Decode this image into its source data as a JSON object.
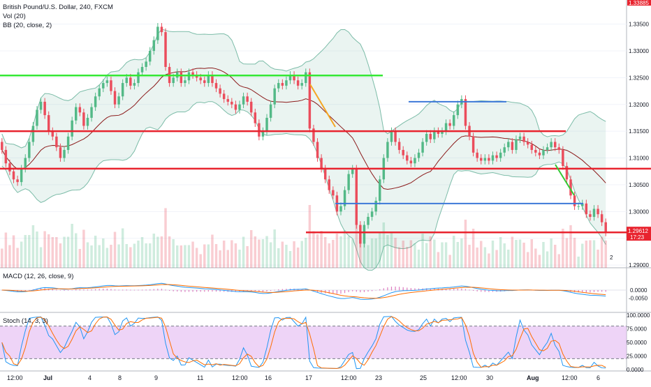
{
  "header": {
    "title": "British Pound/U.S. Dollar, 240, FXCM",
    "vol_label": "Vol (20)",
    "bb_label": "BB (20, close, 2)"
  },
  "macd_panel": {
    "label": "MACD (12, 26, close, 9)"
  },
  "stoch_panel": {
    "label": "Stoch (14, 3, 3)"
  },
  "price_axis": {
    "ticks": [
      "1.33500",
      "1.33000",
      "1.32500",
      "1.32000",
      "1.31500",
      "1.31000",
      "1.30500",
      "1.30000",
      "1.29500",
      "1.29000"
    ],
    "top_badge": "1.33885",
    "last_price": "1.29612",
    "countdown": "17:23"
  },
  "macd_axis": {
    "ticks": [
      "0.0000",
      "-0.0050"
    ]
  },
  "stoch_axis": {
    "ticks": [
      "100.0000",
      "75.0000",
      "50.0000",
      "25.0000",
      "0.0000"
    ]
  },
  "time_axis": {
    "labels": [
      "12:00",
      "Jul",
      "4",
      "8",
      "9",
      "11",
      "12:00",
      "16",
      "17",
      "12:00",
      "23",
      "25",
      "12:00",
      "30",
      "Aug",
      "12:00",
      "6"
    ]
  },
  "badges": {
    "alert_count": "2"
  },
  "colors": {
    "up": "#53b987",
    "down": "#eb4d5c",
    "green_line": "#34e834",
    "red_line": "#e8232e",
    "blue_line": "#3c78d8",
    "orange_arrow": "#f5a623",
    "bb_band": "#7cbca8",
    "bb_basis": "#8b1a1a",
    "stoch_bg": "#e0b0f0",
    "macd_line": "#2196f3",
    "signal_line": "#ff6d00",
    "badge_bg": "#e8232e"
  },
  "chart_data": {
    "type": "candlestick",
    "symbol": "British Pound/U.S. Dollar",
    "interval": "240",
    "source": "FXCM",
    "ylim": [
      1.2895,
      1.3395
    ],
    "closes": [
      1.3115,
      1.309,
      1.3075,
      1.306,
      1.3055,
      1.308,
      1.31,
      1.313,
      1.316,
      1.319,
      1.3205,
      1.318,
      1.315,
      1.314,
      1.312,
      1.31,
      1.3115,
      1.314,
      1.317,
      1.3195,
      1.3185,
      1.316,
      1.3175,
      1.3195,
      1.3215,
      1.323,
      1.324,
      1.3245,
      1.3225,
      1.32,
      1.3215,
      1.324,
      1.325,
      1.3235,
      1.324,
      1.326,
      1.327,
      1.328,
      1.33,
      1.332,
      1.3345,
      1.3335,
      1.327,
      1.324,
      1.325,
      1.326,
      1.324,
      1.3245,
      1.326,
      1.3255,
      1.325,
      1.3245,
      1.324,
      1.3255,
      1.324,
      1.323,
      1.322,
      1.321,
      1.3205,
      1.32,
      1.319,
      1.32,
      1.3215,
      1.3205,
      1.3185,
      1.3165,
      1.314,
      1.315,
      1.3175,
      1.32,
      1.323,
      1.324,
      1.3235,
      1.3245,
      1.3255,
      1.3245,
      1.3235,
      1.324,
      1.326,
      1.3155,
      1.313,
      1.31,
      1.308,
      1.306,
      1.304,
      1.303,
      1.3,
      1.301,
      1.304,
      1.307,
      1.308,
      1.2975,
      1.294,
      1.2975,
      1.299,
      1.3,
      1.302,
      1.306,
      1.31,
      1.313,
      1.315,
      1.313,
      1.3115,
      1.3105,
      1.3095,
      1.309,
      1.31,
      1.311,
      1.313,
      1.3145,
      1.3135,
      1.315,
      1.3145,
      1.315,
      1.3165,
      1.316,
      1.318,
      1.32,
      1.321,
      1.316,
      1.314,
      1.311,
      1.31,
      1.3095,
      1.31,
      1.3095,
      1.3105,
      1.31,
      1.311,
      1.312,
      1.313,
      1.3115,
      1.3135,
      1.314,
      1.313,
      1.3125,
      1.3115,
      1.311,
      1.3105,
      1.3115,
      1.312,
      1.313,
      1.312,
      1.3115,
      1.3085,
      1.306,
      1.303,
      1.301,
      1.301,
      1.3015,
      1.2995,
      1.299,
      1.3005,
      1.2995,
      1.298,
      1.2961
    ],
    "horizontal_levels": [
      {
        "price": 1.3254,
        "color": "green"
      },
      {
        "price": 1.315,
        "color": "red"
      },
      {
        "price": 1.308,
        "color": "red"
      },
      {
        "price": 1.2961,
        "color": "red"
      },
      {
        "price": 1.3205,
        "color": "blue"
      },
      {
        "price": 1.3015,
        "color": "blue"
      }
    ],
    "indicators": [
      "Vol (20)",
      "BB (20, close, 2)",
      "MACD (12, 26, close, 9)",
      "Stoch (14, 3, 3)"
    ],
    "stoch_levels": [
      80,
      20
    ],
    "grid": true,
    "legend": "top-left"
  }
}
